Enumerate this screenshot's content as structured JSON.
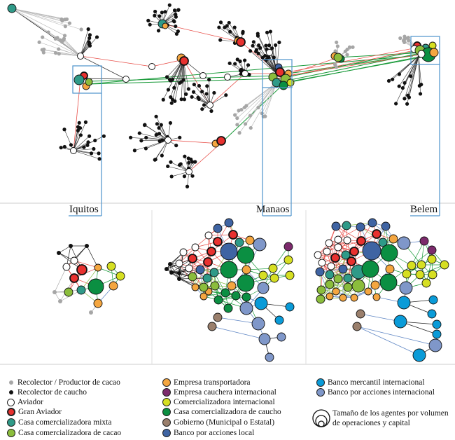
{
  "panels": {
    "iquitos": "Iquitos",
    "manaos": "Manaos",
    "belem": "Belem"
  },
  "colors": {
    "recolector_cacao": "#a6a6a6",
    "recolector_caucho": "#111111",
    "aviador": "#ffffff",
    "gran_aviador": "#e8312f",
    "casa_mixta": "#2f9a88",
    "casa_cacao": "#8bbd3c",
    "empresa_transportadora": "#f4a640",
    "empresa_cauchera": "#7c2a6c",
    "comercializadora": "#d6df22",
    "casa_caucho": "#0b8f42",
    "gobierno": "#9a7f6c",
    "banco_local": "#3f64a3",
    "banco_mercantil": "#0a9bd8",
    "banco_internacional": "#7f97c9",
    "box": "#4d93cc",
    "edge_red": "#e8504a",
    "edge_green": "#1a9a3a",
    "edge_blue": "#5f86c4"
  },
  "legend": [
    {
      "label": "Recolector / Productor de cacao",
      "color": "#a6a6a6",
      "kind": "dot"
    },
    {
      "label": "Recolector de caucho",
      "color": "#111111",
      "kind": "dot"
    },
    {
      "label": "Aviador",
      "color": "#ffffff",
      "kind": "circle"
    },
    {
      "label": "Gran Aviador",
      "color": "#e8312f",
      "kind": "bold"
    },
    {
      "label": "Casa comercializadora mixta",
      "color": "#2f9a88",
      "kind": "circle"
    },
    {
      "label": "Casa comercializadora de cacao",
      "color": "#8bbd3c",
      "kind": "circle"
    },
    {
      "label": "Empresa transportadora",
      "color": "#f4a640",
      "kind": "circle"
    },
    {
      "label": "Empresa cauchera internacional",
      "color": "#7c2a6c",
      "kind": "circle"
    },
    {
      "label": "Comercializadora internacional",
      "color": "#d6df22",
      "kind": "circle"
    },
    {
      "label": "Casa comercializadora de caucho",
      "color": "#0b8f42",
      "kind": "circle"
    },
    {
      "label": "Gobierno (Municipal o Estatal)",
      "color": "#9a7f6c",
      "kind": "circle"
    },
    {
      "label": "Banco por acciones local",
      "color": "#3f64a3",
      "kind": "circle"
    },
    {
      "label": "Banco mercantil internacional",
      "color": "#0a9bd8",
      "kind": "circle"
    },
    {
      "label": "Banco por acciones internacional",
      "color": "#7f97c9",
      "kind": "circle"
    }
  ],
  "size_key": {
    "line1": "Tamaño de los agentes por volumen",
    "line2": "de operaciones y capital"
  }
}
